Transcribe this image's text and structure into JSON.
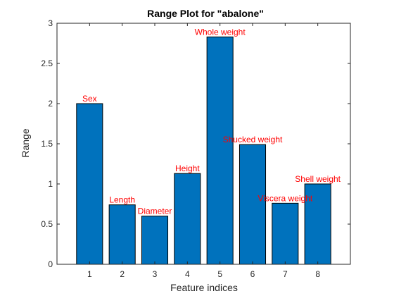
{
  "chart_data": {
    "type": "bar",
    "title": "Range Plot for \"abalone\"",
    "xlabel": "Feature indices",
    "ylabel": "Range",
    "categories": [
      "1",
      "2",
      "3",
      "4",
      "5",
      "6",
      "7",
      "8"
    ],
    "values": [
      2.0,
      0.74,
      0.6,
      1.13,
      2.83,
      1.49,
      0.76,
      1.0
    ],
    "bar_labels": [
      "Sex",
      "Length",
      "Diameter",
      "Height",
      "Whole weight",
      "Shucked weight",
      "Viscera weight",
      "Shell weight"
    ],
    "xlim": [
      0,
      9
    ],
    "ylim": [
      0,
      3
    ],
    "yticks": [
      "0",
      "0.5",
      "1",
      "1.5",
      "2",
      "2.5",
      "3"
    ],
    "grid": false,
    "colors": {
      "bar": "#0072bd",
      "bar_label": "#ff0000"
    }
  }
}
